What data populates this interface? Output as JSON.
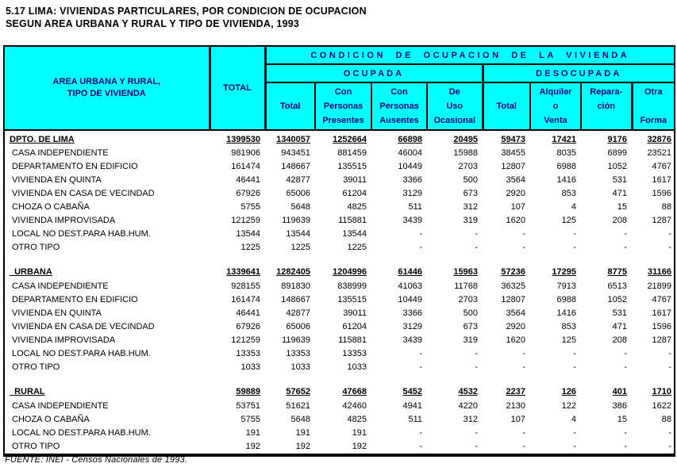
{
  "title": {
    "line1": "5.17 LIMA:  VIVIENDAS PARTICULARES, POR CONDICION DE OCUPACION",
    "line2": "SEGUN AREA URBANA Y RURAL Y TIPO DE VIVIENDA, 1993"
  },
  "colors": {
    "header_bg": "#00ffff",
    "header_text": "#000080",
    "border": "#000000",
    "body_text": "#000000"
  },
  "table": {
    "header": {
      "area_label": "AREA URBANA Y RURAL,\nTIPO DE VIVIENDA",
      "total_label": "TOTAL",
      "condicion_label": "CONDICION DE OCUPACION DE LA VIVIENDA",
      "ocupada_label": "OCUPADA",
      "desocupada_label": "DESOCUPADA",
      "cols": [
        {
          "lines": "Total"
        },
        {
          "lines": "Con\nPersonas\nPresentes"
        },
        {
          "lines": "Con\nPersonas\nAusentes"
        },
        {
          "lines": "De\nUso\nOcasional"
        },
        {
          "lines": "Total"
        },
        {
          "lines": "Alquiler\no\nVenta"
        },
        {
          "lines": "Repara-\nción"
        },
        {
          "lines": "Otra\n\nForma"
        }
      ]
    },
    "sections": [
      {
        "name": "DPTO. DE LIMA",
        "totals": [
          "1399530",
          "1340057",
          "1252664",
          "66898",
          "20495",
          "59473",
          "17421",
          "9176",
          "32876"
        ],
        "rows": [
          {
            "label": "CASA INDEPENDIENTE",
            "values": [
              "981906",
              "943451",
              "881459",
              "46004",
              "15988",
              "38455",
              "8035",
              "6899",
              "23521"
            ]
          },
          {
            "label": "DEPARTAMENTO EN EDIFICIO",
            "values": [
              "161474",
              "148667",
              "135515",
              "10449",
              "2703",
              "12807",
              "6988",
              "1052",
              "4767"
            ]
          },
          {
            "label": "VIVIENDA EN QUINTA",
            "values": [
              "46441",
              "42877",
              "39011",
              "3366",
              "500",
              "3564",
              "1416",
              "531",
              "1617"
            ]
          },
          {
            "label": "VIVIENDA EN CASA DE VECINDAD",
            "values": [
              "67926",
              "65006",
              "61204",
              "3129",
              "673",
              "2920",
              "853",
              "471",
              "1596"
            ]
          },
          {
            "label": "CHOZA O CABAÑA",
            "values": [
              "5755",
              "5648",
              "4825",
              "511",
              "312",
              "107",
              "4",
              "15",
              "88"
            ]
          },
          {
            "label": "VIVIENDA IMPROVISADA",
            "values": [
              "121259",
              "119639",
              "115881",
              "3439",
              "319",
              "1620",
              "125",
              "208",
              "1287"
            ]
          },
          {
            "label": "LOCAL NO DEST.PARA HAB.HUM.",
            "values": [
              "13544",
              "13544",
              "13544",
              "-",
              "-",
              "-",
              "-",
              "-",
              "-"
            ]
          },
          {
            "label": "OTRO TIPO",
            "values": [
              "1225",
              "1225",
              "1225",
              "-",
              "-",
              "-",
              "-",
              "-",
              "-"
            ]
          }
        ]
      },
      {
        "name": "  URBANA",
        "totals": [
          "1339641",
          "1282405",
          "1204996",
          "61446",
          "15963",
          "57236",
          "17295",
          "8775",
          "31166"
        ],
        "rows": [
          {
            "label": "CASA INDEPENDIENTE",
            "values": [
              "928155",
              "891830",
              "838999",
              "41063",
              "11768",
              "36325",
              "7913",
              "6513",
              "21899"
            ]
          },
          {
            "label": "DEPARTAMENTO EN EDIFICIO",
            "values": [
              "161474",
              "148667",
              "135515",
              "10449",
              "2703",
              "12807",
              "6988",
              "1052",
              "4767"
            ]
          },
          {
            "label": "VIVIENDA EN QUINTA",
            "values": [
              "46441",
              "42877",
              "39011",
              "3366",
              "500",
              "3564",
              "1416",
              "531",
              "1617"
            ]
          },
          {
            "label": "VIVIENDA EN CASA DE VECINDAD",
            "values": [
              "67926",
              "65006",
              "61204",
              "3129",
              "673",
              "2920",
              "853",
              "471",
              "1596"
            ]
          },
          {
            "label": "VIVIENDA IMPROVISADA",
            "values": [
              "121259",
              "119639",
              "115881",
              "3439",
              "319",
              "1620",
              "125",
              "208",
              "1287"
            ]
          },
          {
            "label": "LOCAL NO DEST.PARA HAB.HUM.",
            "values": [
              "13353",
              "13353",
              "13353",
              "-",
              "-",
              "-",
              "-",
              "-",
              "-"
            ]
          },
          {
            "label": "OTRO TIPO",
            "values": [
              "1033",
              "1033",
              "1033",
              "-",
              "-",
              "-",
              "-",
              "-",
              "-"
            ]
          }
        ]
      },
      {
        "name": "  RURAL",
        "totals": [
          "59889",
          "57652",
          "47668",
          "5452",
          "4532",
          "2237",
          "126",
          "401",
          "1710"
        ],
        "rows": [
          {
            "label": "CASA INDEPENDIENTE",
            "values": [
              "53751",
              "51621",
              "42460",
              "4941",
              "4220",
              "2130",
              "122",
              "386",
              "1622"
            ]
          },
          {
            "label": "CHOZA O CABAÑA",
            "values": [
              "5755",
              "5648",
              "4825",
              "511",
              "312",
              "107",
              "4",
              "15",
              "88"
            ]
          },
          {
            "label": "LOCAL NO DEST.PARA HAB.HUM.",
            "values": [
              "191",
              "191",
              "191",
              "-",
              "-",
              "-",
              "-",
              "-",
              "-"
            ]
          },
          {
            "label": "OTRO TIPO",
            "values": [
              "192",
              "192",
              "192",
              "-",
              "-",
              "-",
              "-",
              "-",
              "-"
            ]
          }
        ]
      }
    ]
  },
  "footer": {
    "source": "FUENTE: INEI - Censos Nacionales de 1993."
  }
}
